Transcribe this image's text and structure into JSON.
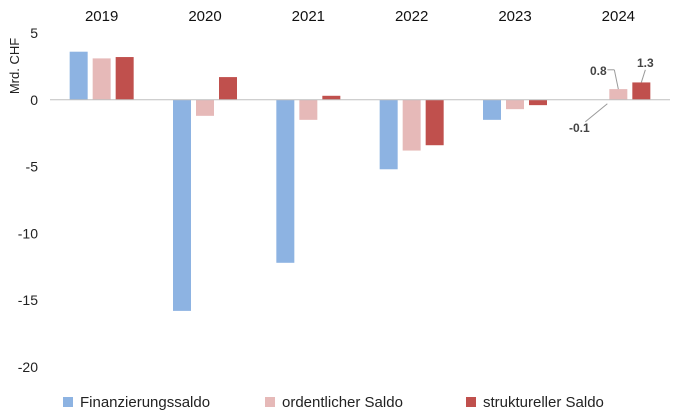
{
  "chart_data": {
    "type": "bar",
    "categories": [
      "2019",
      "2020",
      "2021",
      "2022",
      "2023",
      "2024"
    ],
    "ylabel": "Mrd. CHF",
    "ylim": [
      -20,
      5
    ],
    "yticks": [
      5,
      0,
      -5,
      -10,
      -15,
      -20
    ],
    "grid": false,
    "legend_position": "bottom",
    "category_axis_position": "top",
    "series": [
      {
        "name": "Finanzierungssaldo",
        "color": "#8DB3E2",
        "values": [
          3.6,
          -15.8,
          -12.2,
          -5.2,
          -1.5,
          null
        ]
      },
      {
        "name": "ordentlicher Saldo",
        "color": "#E6B9B8",
        "values": [
          3.1,
          -1.2,
          -1.5,
          -3.8,
          -0.7,
          0.8
        ]
      },
      {
        "name": "struktureller Saldo",
        "color": "#C0504D",
        "values": [
          3.2,
          1.7,
          0.3,
          -3.4,
          -0.4,
          1.3
        ]
      }
    ],
    "data_labels": [
      {
        "text": "-0.1",
        "category": "2024",
        "series": 0
      },
      {
        "text": "0.8",
        "category": "2024",
        "series": 1
      },
      {
        "text": "1.3",
        "category": "2024",
        "series": 2
      }
    ]
  }
}
